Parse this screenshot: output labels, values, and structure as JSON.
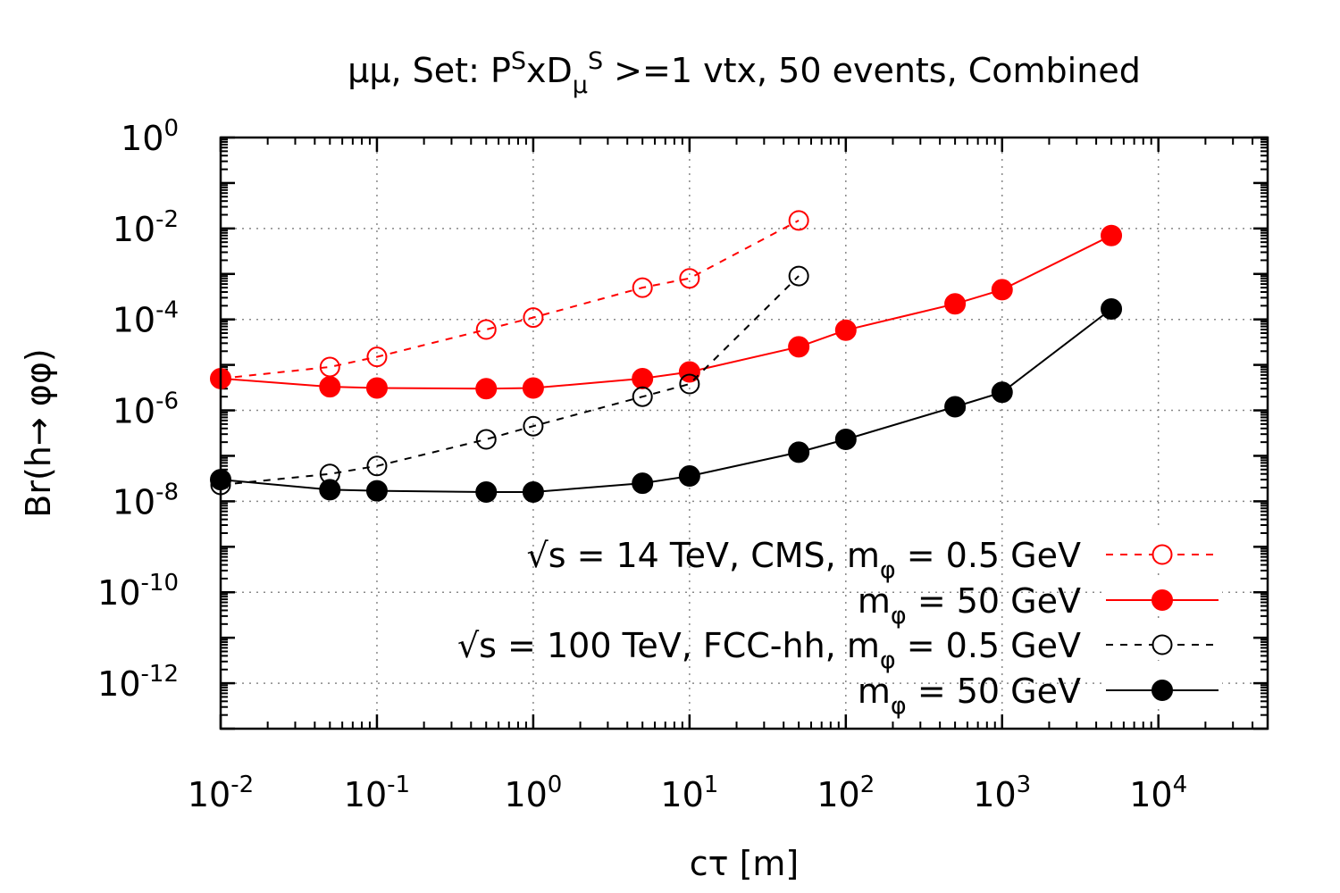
{
  "chart_data": {
    "type": "line",
    "title": {
      "prefix": "μμ, Set: P",
      "sup1": "S",
      "mid": "xD",
      "sub1": "μ",
      "sup2": "S",
      "suffix": " >=1 vtx, 50 events, Combined"
    },
    "xlabel": "cτ [m]",
    "ylabel": "Br(h→ φφ)",
    "x_scale": "log",
    "y_scale": "log",
    "xlim": [
      0.01,
      50000
    ],
    "ylim": [
      1e-13,
      1
    ],
    "grid": true,
    "x_ticks": [
      {
        "base": "10",
        "exp": "-2",
        "value": 0.01
      },
      {
        "base": "10",
        "exp": "-1",
        "value": 0.1
      },
      {
        "base": "10",
        "exp": "0",
        "value": 1
      },
      {
        "base": "10",
        "exp": "1",
        "value": 10
      },
      {
        "base": "10",
        "exp": "2",
        "value": 100
      },
      {
        "base": "10",
        "exp": "3",
        "value": 1000
      },
      {
        "base": "10",
        "exp": "4",
        "value": 10000
      }
    ],
    "y_ticks": [
      {
        "base": "10",
        "exp": "0",
        "value": 1
      },
      {
        "base": "10",
        "exp": "-2",
        "value": 0.01
      },
      {
        "base": "10",
        "exp": "-4",
        "value": 0.0001
      },
      {
        "base": "10",
        "exp": "-6",
        "value": 1e-06
      },
      {
        "base": "10",
        "exp": "-8",
        "value": 1e-08
      },
      {
        "base": "10",
        "exp": "-10",
        "value": 1e-10
      },
      {
        "base": "10",
        "exp": "-12",
        "value": 1e-12
      }
    ],
    "legend_position": "bottom-right",
    "series": [
      {
        "name": "cms-0.5",
        "label_main": "√s = 14 TeV, CMS, m",
        "label_sub": "φ",
        "label_end": " = 0.5 GeV",
        "color": "#ff0000",
        "dashed": true,
        "filled": false,
        "x": [
          0.01,
          0.05,
          0.1,
          0.5,
          1,
          5,
          10,
          50
        ],
        "y": [
          5e-06,
          9e-06,
          1.5e-05,
          6e-05,
          0.00011,
          0.0005,
          0.0008,
          0.015
        ]
      },
      {
        "name": "cms-50",
        "label_main": "m",
        "label_sub": "φ",
        "label_end": " = 50 GeV",
        "color": "#ff0000",
        "dashed": false,
        "filled": true,
        "x": [
          0.01,
          0.05,
          0.1,
          0.5,
          1,
          5,
          10,
          50,
          100,
          500,
          1000,
          5000
        ],
        "y": [
          5e-06,
          3.3e-06,
          3.1e-06,
          3e-06,
          3.1e-06,
          5e-06,
          7e-06,
          2.5e-05,
          5.8e-05,
          0.00022,
          0.00045,
          0.007
        ]
      },
      {
        "name": "fcc-0.5",
        "label_main": "√s = 100 TeV, FCC-hh, m",
        "label_sub": "φ",
        "label_end": " = 0.5 GeV",
        "color": "#000000",
        "dashed": true,
        "filled": false,
        "x": [
          0.01,
          0.05,
          0.1,
          0.5,
          1,
          5,
          10,
          50
        ],
        "y": [
          2.3e-08,
          4e-08,
          6e-08,
          2.3e-07,
          4.5e-07,
          2e-06,
          3.8e-06,
          0.0009
        ]
      },
      {
        "name": "fcc-50",
        "label_main": "m",
        "label_sub": "φ",
        "label_end": " = 50 GeV",
        "color": "#000000",
        "dashed": false,
        "filled": true,
        "x": [
          0.01,
          0.05,
          0.1,
          0.5,
          1,
          5,
          10,
          50,
          100,
          500,
          1000,
          5000
        ],
        "y": [
          3e-08,
          1.8e-08,
          1.7e-08,
          1.6e-08,
          1.6e-08,
          2.5e-08,
          3.6e-08,
          1.2e-07,
          2.3e-07,
          1.2e-06,
          2.5e-06,
          0.00017
        ]
      }
    ]
  }
}
